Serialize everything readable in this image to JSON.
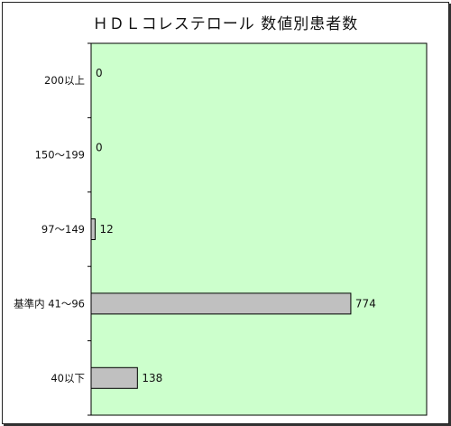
{
  "chart_data": {
    "type": "bar",
    "orientation": "horizontal",
    "title": "ＨＤＬコレステロール 数値別患者数",
    "categories": [
      "200以上",
      "150～199",
      "97～149",
      "基準内 41～96",
      "40以下"
    ],
    "values": [
      0,
      0,
      12,
      774,
      138
    ],
    "xlim": [
      0,
      1000
    ],
    "grid": false,
    "legend": "none",
    "colors": {
      "plot_background": "#ccffcc",
      "bar_fill": "#c0c0c0",
      "bar_stroke": "#000000"
    }
  }
}
